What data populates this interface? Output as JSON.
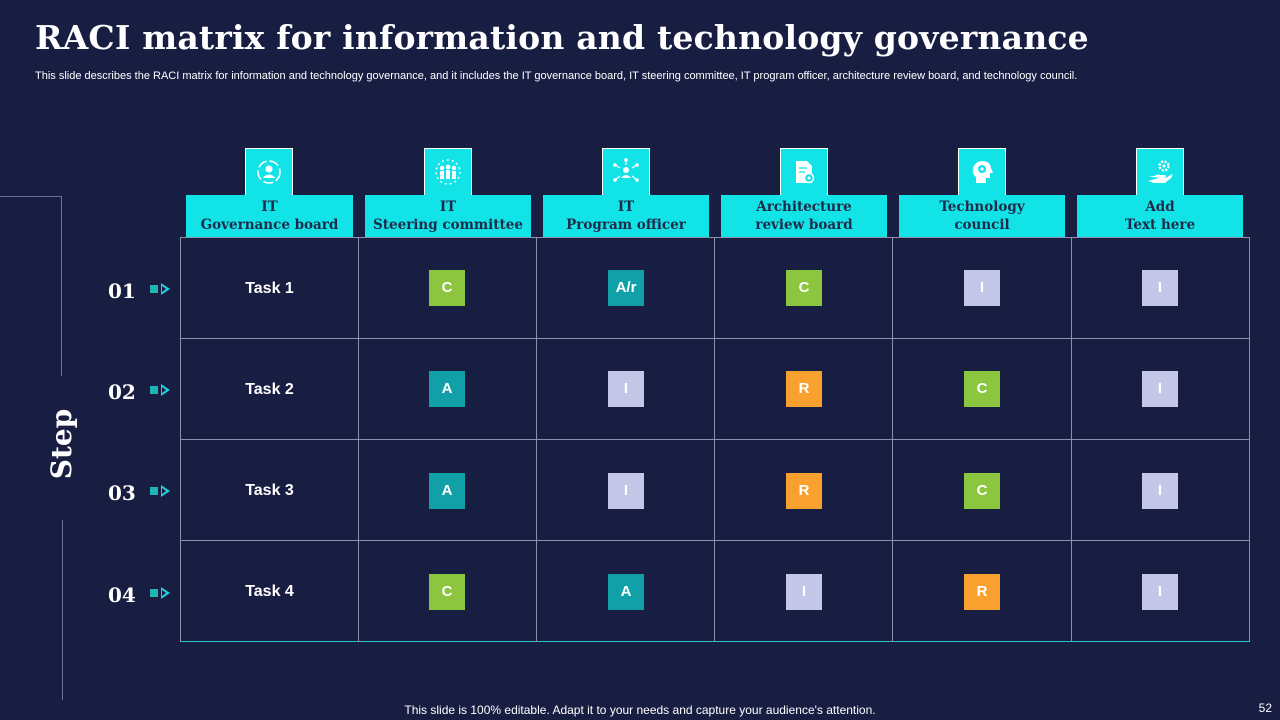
{
  "title": "RACI matrix for information and technology governance",
  "subtitle": "This slide describes the RACI matrix for information and technology governance, and it includes the IT governance board, IT steering committee, IT program officer, architecture review board, and technology council.",
  "step_label": "Step",
  "columns": [
    {
      "line1": "IT",
      "line2": "Governance board",
      "icon": "governance-icon"
    },
    {
      "line1": "IT",
      "line2": "Steering committee",
      "icon": "team-icon"
    },
    {
      "line1": "IT",
      "line2": "Program officer",
      "icon": "network-user-icon"
    },
    {
      "line1": "Architecture",
      "line2": "review board",
      "icon": "document-gear-icon"
    },
    {
      "line1": "Technology",
      "line2": "council",
      "icon": "head-gear-icon"
    },
    {
      "line1": "Add",
      "line2": "Text here",
      "icon": "hand-gear-icon"
    }
  ],
  "rows": [
    {
      "num": "01",
      "task": "Task 1",
      "cells": [
        "C",
        "A/r",
        "C",
        "I",
        "I"
      ]
    },
    {
      "num": "02",
      "task": "Task 2",
      "cells": [
        "A",
        "I",
        "R",
        "C",
        "I"
      ]
    },
    {
      "num": "03",
      "task": "Task 3",
      "cells": [
        "A",
        "I",
        "R",
        "C",
        "I"
      ]
    },
    {
      "num": "04",
      "task": "Task 4",
      "cells": [
        "C",
        "A",
        "I",
        "R",
        "I"
      ]
    }
  ],
  "colors": {
    "background": "#181d42",
    "header": "#12e3e6",
    "C": "#8cc63f",
    "A": "#12a0a8",
    "A/r": "#12a0a8",
    "I": "#c4c7e8",
    "R": "#f9a12e"
  },
  "footer": "This slide is 100% editable. Adapt it to your needs and capture your audience's attention.",
  "page_number": "52"
}
